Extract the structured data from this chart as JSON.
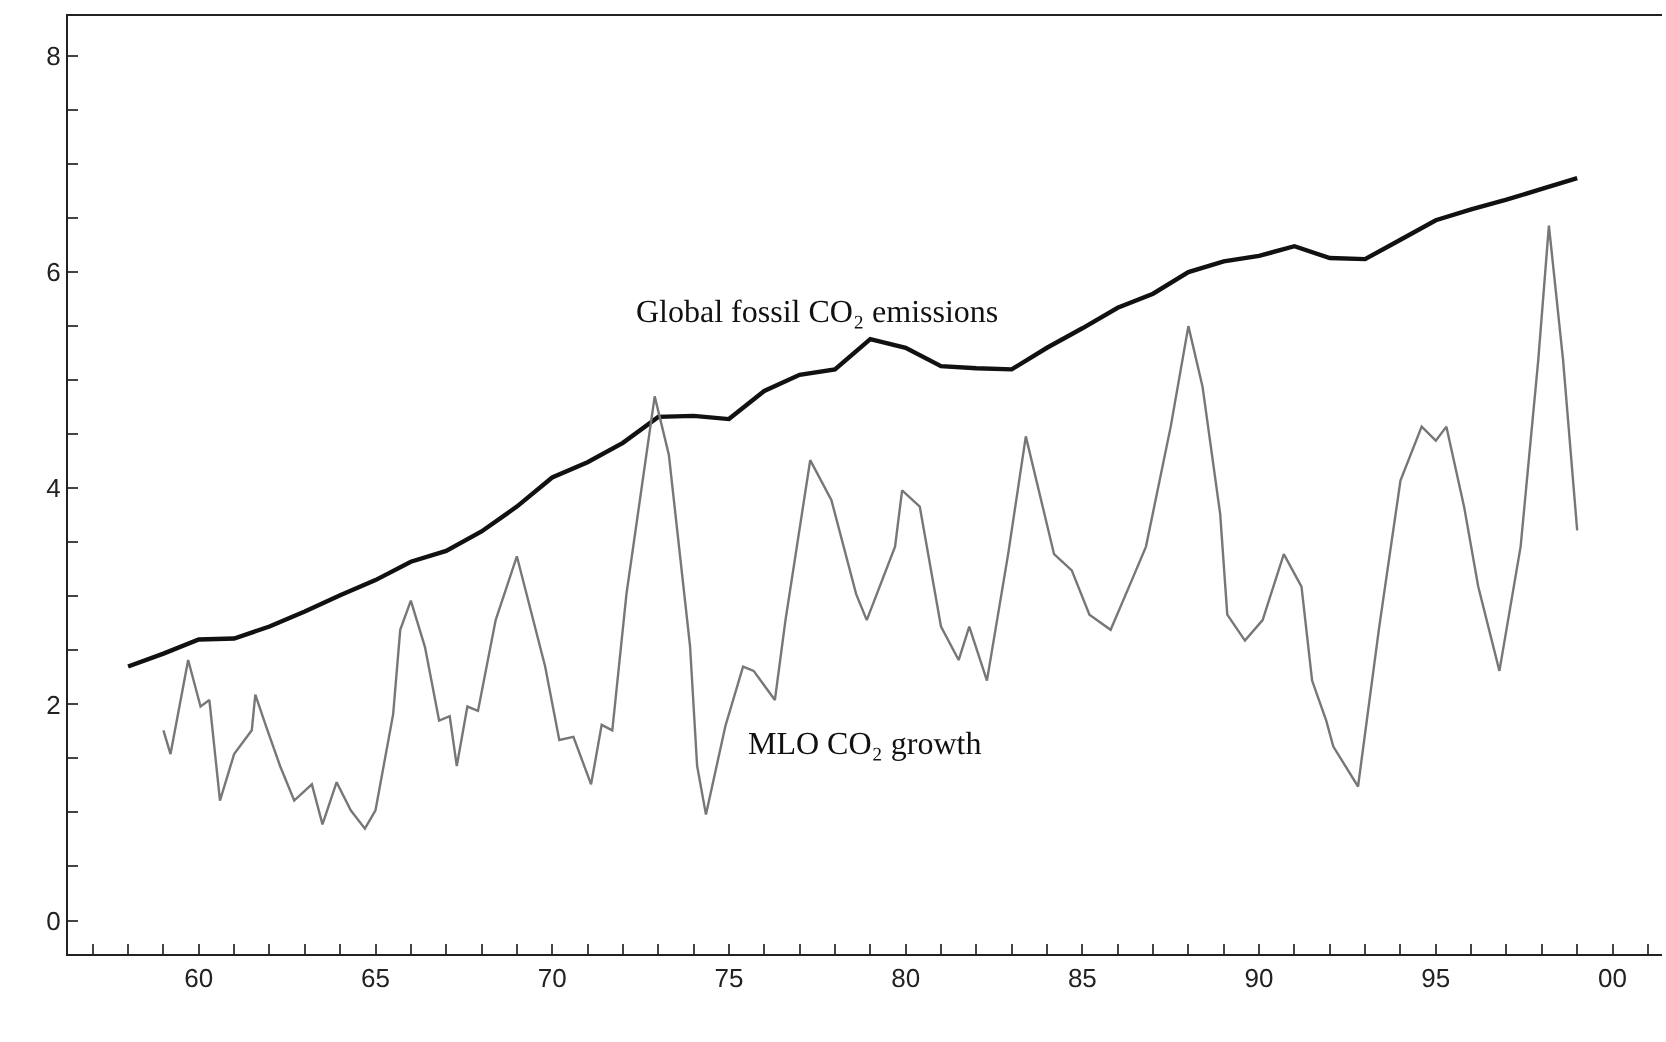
{
  "chart_data": {
    "type": "line",
    "series": [
      {
        "name": "Global fossil CO₂ emissions",
        "color": "#111111",
        "x": [
          1958,
          1959,
          1960,
          1961,
          1962,
          1963,
          1964,
          1965,
          1966,
          1967,
          1968,
          1969,
          1970,
          1971,
          1972,
          1973,
          1974,
          1975,
          1976,
          1977,
          1978,
          1979,
          1980,
          1981,
          1982,
          1983,
          1984,
          1985,
          1986,
          1987,
          1988,
          1989,
          1990,
          1991,
          1992,
          1993,
          1994,
          1995,
          1996,
          1997,
          1998,
          1999
        ],
        "values": [
          2.35,
          2.47,
          2.6,
          2.61,
          2.72,
          2.86,
          3.01,
          3.15,
          3.32,
          3.42,
          3.6,
          3.83,
          4.1,
          4.24,
          4.42,
          4.66,
          4.67,
          4.64,
          4.9,
          5.05,
          5.1,
          5.38,
          5.3,
          5.13,
          5.11,
          5.1,
          5.3,
          5.48,
          5.67,
          5.8,
          6.0,
          6.1,
          6.15,
          6.24,
          6.13,
          6.12,
          6.3,
          6.48,
          6.58,
          6.67,
          6.77,
          6.87
        ]
      },
      {
        "name": "MLO CO₂ growth",
        "color": "#777777",
        "x": [
          1959.0,
          1959.2,
          1959.7,
          1960.05,
          1960.3,
          1960.6,
          1961.0,
          1961.5,
          1961.6,
          1961.9,
          1962.3,
          1962.7,
          1963.2,
          1963.5,
          1963.9,
          1964.3,
          1964.7,
          1965.0,
          1965.5,
          1965.7,
          1966.0,
          1966.4,
          1966.8,
          1967.1,
          1967.3,
          1967.6,
          1967.9,
          1968.4,
          1969.0,
          1969.8,
          1970.2,
          1970.6,
          1971.1,
          1971.4,
          1971.7,
          1972.1,
          1972.9,
          1973.3,
          1973.9,
          1974.1,
          1974.35,
          1974.9,
          1975.4,
          1975.7,
          1976.3,
          1976.6,
          1977.3,
          1977.9,
          1978.6,
          1978.9,
          1979.7,
          1979.9,
          1980.4,
          1981.0,
          1981.5,
          1981.8,
          1982.3,
          1982.9,
          1983.4,
          1984.2,
          1984.7,
          1985.2,
          1985.8,
          1986.4,
          1986.8,
          1987.5,
          1988.0,
          1988.4,
          1988.9,
          1989.1,
          1989.6,
          1990.1,
          1990.7,
          1991.2,
          1991.5,
          1991.9,
          1992.1,
          1992.8,
          1993.4,
          1994.0,
          1994.6,
          1995.0,
          1995.3,
          1995.8,
          1996.2,
          1996.8,
          1997.4,
          1997.9,
          1998.2,
          1998.6,
          1999.0
        ],
        "values": [
          1.76,
          1.54,
          2.41,
          1.98,
          2.04,
          1.11,
          1.54,
          1.76,
          2.09,
          1.8,
          1.43,
          1.11,
          1.26,
          0.89,
          1.28,
          1.02,
          0.85,
          1.02,
          1.91,
          2.69,
          2.96,
          2.53,
          1.85,
          1.89,
          1.43,
          1.98,
          1.94,
          2.78,
          3.37,
          2.35,
          1.67,
          1.7,
          1.26,
          1.81,
          1.76,
          3.02,
          4.85,
          4.31,
          2.54,
          1.43,
          0.98,
          1.8,
          2.35,
          2.31,
          2.04,
          2.78,
          4.26,
          3.89,
          3.02,
          2.78,
          3.46,
          3.98,
          3.83,
          2.72,
          2.41,
          2.72,
          2.22,
          3.39,
          4.48,
          3.39,
          3.24,
          2.83,
          2.69,
          3.15,
          3.46,
          4.57,
          5.5,
          4.94,
          3.76,
          2.83,
          2.59,
          2.78,
          3.39,
          3.09,
          2.22,
          1.85,
          1.61,
          1.24,
          2.72,
          4.07,
          4.57,
          4.44,
          4.57,
          3.83,
          3.09,
          2.31,
          3.46,
          5.19,
          6.43,
          5.19,
          3.61
        ]
      }
    ],
    "xlim": [
      1956.3,
      2001.4
    ],
    "xticks": [
      {
        "value": 1957,
        "label": null
      },
      {
        "value": 1958,
        "label": null
      },
      {
        "value": 1959,
        "label": null
      },
      {
        "value": 1960,
        "label": "60"
      },
      {
        "value": 1961,
        "label": null
      },
      {
        "value": 1962,
        "label": null
      },
      {
        "value": 1963,
        "label": null
      },
      {
        "value": 1964,
        "label": null
      },
      {
        "value": 1965,
        "label": "65"
      },
      {
        "value": 1966,
        "label": null
      },
      {
        "value": 1967,
        "label": null
      },
      {
        "value": 1968,
        "label": null
      },
      {
        "value": 1969,
        "label": null
      },
      {
        "value": 1970,
        "label": "70"
      },
      {
        "value": 1971,
        "label": null
      },
      {
        "value": 1972,
        "label": null
      },
      {
        "value": 1973,
        "label": null
      },
      {
        "value": 1974,
        "label": null
      },
      {
        "value": 1975,
        "label": "75"
      },
      {
        "value": 1976,
        "label": null
      },
      {
        "value": 1977,
        "label": null
      },
      {
        "value": 1978,
        "label": null
      },
      {
        "value": 1979,
        "label": null
      },
      {
        "value": 1980,
        "label": "80"
      },
      {
        "value": 1981,
        "label": null
      },
      {
        "value": 1982,
        "label": null
      },
      {
        "value": 1983,
        "label": null
      },
      {
        "value": 1984,
        "label": null
      },
      {
        "value": 1985,
        "label": "85"
      },
      {
        "value": 1986,
        "label": null
      },
      {
        "value": 1987,
        "label": null
      },
      {
        "value": 1988,
        "label": null
      },
      {
        "value": 1989,
        "label": null
      },
      {
        "value": 1990,
        "label": "90"
      },
      {
        "value": 1991,
        "label": null
      },
      {
        "value": 1992,
        "label": null
      },
      {
        "value": 1993,
        "label": null
      },
      {
        "value": 1994,
        "label": null
      },
      {
        "value": 1995,
        "label": "95"
      },
      {
        "value": 1996,
        "label": null
      },
      {
        "value": 1997,
        "label": null
      },
      {
        "value": 1998,
        "label": null
      },
      {
        "value": 1999,
        "label": null
      },
      {
        "value": 2000,
        "label": "00"
      },
      {
        "value": 2001,
        "label": null
      }
    ],
    "ylim": [
      -0.31,
      8.37
    ],
    "yticks": [
      0,
      {
        "value": 0.5,
        "label": null
      },
      {
        "value": 1,
        "label": null
      },
      {
        "value": 1.5,
        "label": null
      },
      2,
      {
        "value": 2.5,
        "label": null
      },
      {
        "value": 3,
        "label": null
      },
      {
        "value": 3.5,
        "label": null
      },
      4,
      {
        "value": 4.5,
        "label": null
      },
      {
        "value": 5,
        "label": null
      },
      {
        "value": 5.5,
        "label": null
      },
      6,
      {
        "value": 6.5,
        "label": null
      },
      {
        "value": 7,
        "label": null
      },
      {
        "value": 7.5,
        "label": null
      },
      8
    ],
    "legend": false,
    "marker": "none",
    "line_style": "solid"
  }
}
